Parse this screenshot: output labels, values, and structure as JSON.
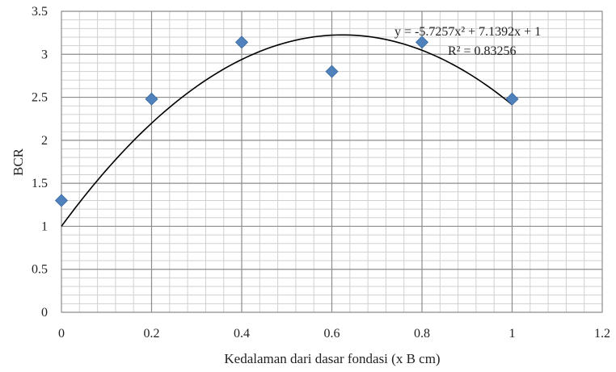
{
  "chart_data": {
    "type": "scatter",
    "xlabel": "Kedalaman  dari dasar fondasi (x B cm)",
    "ylabel": "BCR",
    "xlim": [
      0,
      1.2
    ],
    "ylim": [
      0,
      3.5
    ],
    "x_ticks": [
      "0",
      "0.2",
      "0.4",
      "0.6",
      "0.8",
      "1",
      "1.2"
    ],
    "y_ticks": [
      "0",
      "0.5",
      "1",
      "1.5",
      "2",
      "2.5",
      "3",
      "3.5"
    ],
    "x_major_step": 0.2,
    "x_minor_step": 0.04,
    "y_major_step": 0.5,
    "y_minor_step": 0.1,
    "grid": true,
    "legend": "none",
    "series": [
      {
        "x": [
          0,
          0.2,
          0.4,
          0.6,
          0.8,
          1.0
        ],
        "y": [
          1.3,
          2.48,
          3.14,
          2.8,
          3.14,
          2.48
        ],
        "marker": "diamond",
        "color": "#4F81BD"
      }
    ],
    "trendline": {
      "type": "polynomial",
      "coefficients": [
        -5.7257,
        7.1392,
        1
      ],
      "x_range": [
        0,
        1
      ],
      "color": "#000000",
      "equation": "y = -5.7257x² + 7.1392x + 1",
      "r_squared": "R² = 0.83256"
    }
  }
}
